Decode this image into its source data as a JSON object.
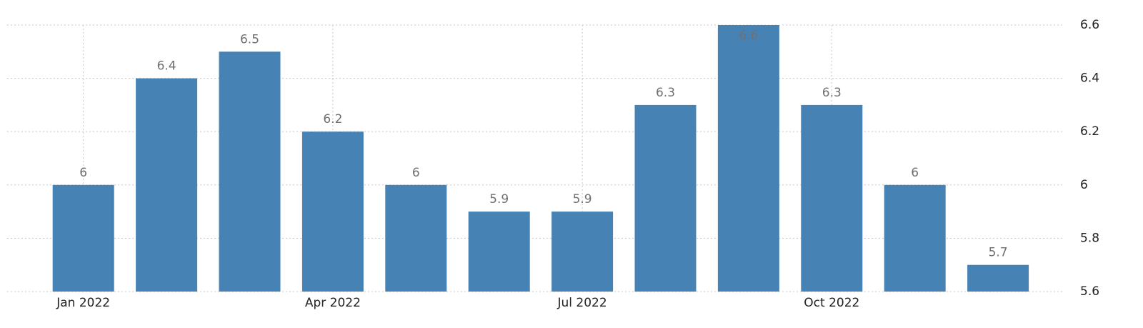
{
  "chart_data": {
    "type": "bar",
    "categories": [
      "Jan 2022",
      null,
      null,
      "Apr 2022",
      null,
      null,
      "Jul 2022",
      null,
      null,
      "Oct 2022",
      null,
      null
    ],
    "values": [
      6,
      6.4,
      6.5,
      6.2,
      6,
      5.9,
      5.9,
      6.3,
      6.6,
      6.3,
      6,
      5.7
    ],
    "color": "#4682b4",
    "ylim": [
      5.6,
      6.6
    ],
    "yticks": [
      5.6,
      5.8,
      6,
      6.2,
      6.4,
      6.6
    ],
    "grid": true
  }
}
